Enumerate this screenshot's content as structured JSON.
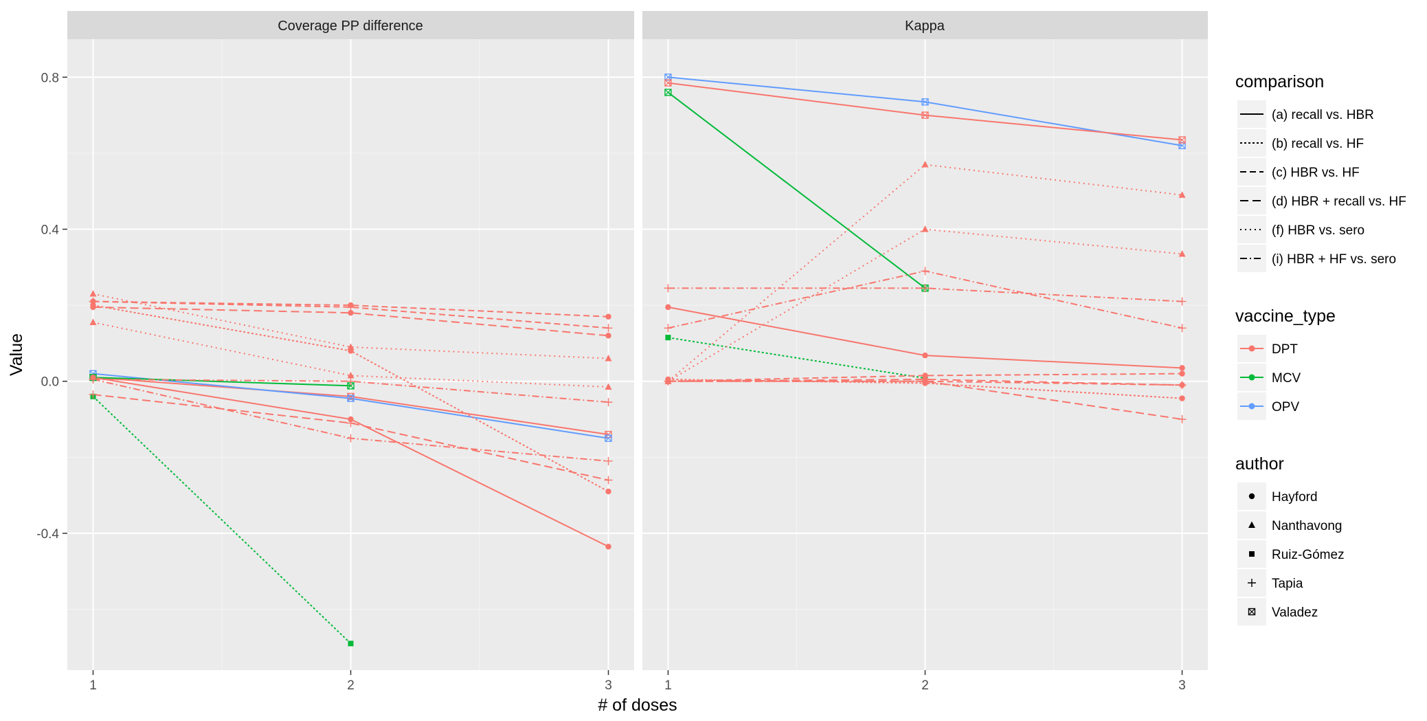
{
  "chart_data": {
    "type": "line",
    "x": [
      1,
      2,
      3
    ],
    "xlabel": "# of doses",
    "ylabel": "Value",
    "ylim": [
      -0.76,
      0.9
    ],
    "yticks": [
      {
        "value": 0.8,
        "label": "0.8"
      },
      {
        "value": 0.4,
        "label": "0.4"
      },
      {
        "value": 0.0,
        "label": "0.0"
      },
      {
        "value": -0.4,
        "label": "-0.4"
      }
    ],
    "xticks": [
      {
        "value": 1,
        "label": "1"
      },
      {
        "value": 2,
        "label": "2"
      },
      {
        "value": 3,
        "label": "3"
      }
    ],
    "colors": {
      "DPT": "#F8766D",
      "MCV": "#00BA38",
      "OPV": "#619CFF"
    },
    "panels": [
      {
        "title": "Coverage PP difference",
        "series": [
          {
            "name": "Valadez DPT recall vs. HBR",
            "comparison": "a",
            "vaccine": "DPT",
            "author": "Valadez",
            "values": [
              0.01,
              -0.04,
              -0.14
            ]
          },
          {
            "name": "Valadez OPV recall vs. HBR",
            "comparison": "a",
            "vaccine": "OPV",
            "author": "Valadez",
            "values": [
              0.02,
              -0.045,
              -0.15
            ]
          },
          {
            "name": "Valadez MCV recall vs. HBR",
            "comparison": "a",
            "vaccine": "MCV",
            "author": "Valadez",
            "values": [
              0.01,
              -0.012,
              null
            ]
          },
          {
            "name": "Hayford DPT recall vs. HBR",
            "comparison": "a",
            "vaccine": "DPT",
            "author": "Hayford",
            "values": [
              0.01,
              -0.1,
              -0.435
            ]
          },
          {
            "name": "Ruiz-Gómez MCV recall vs. HF",
            "comparison": "b",
            "vaccine": "MCV",
            "author": "Ruiz-Gómez",
            "values": [
              -0.04,
              -0.69,
              null
            ]
          },
          {
            "name": "Hayford DPT recall vs. HF",
            "comparison": "b",
            "vaccine": "DPT",
            "author": "Hayford",
            "values": [
              0.2,
              0.08,
              -0.29
            ]
          },
          {
            "name": "Hayford DPT HBR vs. HF",
            "comparison": "c",
            "vaccine": "DPT",
            "author": "Hayford",
            "values": [
              0.21,
              0.2,
              0.17
            ]
          },
          {
            "name": "Tapia DPT HBR vs. HF",
            "comparison": "c",
            "vaccine": "DPT",
            "author": "Tapia",
            "values": [
              0.21,
              0.195,
              0.14
            ]
          },
          {
            "name": "Hayford DPT HBR + recall vs. HF",
            "comparison": "d",
            "vaccine": "DPT",
            "author": "Hayford",
            "values": [
              0.195,
              0.18,
              0.12
            ]
          },
          {
            "name": "Tapia DPT HBR + recall vs. HF",
            "comparison": "d",
            "vaccine": "DPT",
            "author": "Tapia",
            "values": [
              -0.035,
              -0.11,
              -0.26
            ]
          },
          {
            "name": "Nanthavong DPT HBR vs. sero 1",
            "comparison": "f",
            "vaccine": "DPT",
            "author": "Nanthavong",
            "values": [
              0.23,
              0.09,
              0.06
            ]
          },
          {
            "name": "Nanthavong DPT HBR vs. sero 2",
            "comparison": "f",
            "vaccine": "DPT",
            "author": "Nanthavong",
            "values": [
              0.155,
              0.015,
              -0.015
            ]
          },
          {
            "name": "Tapia DPT HBR + HF vs. sero 1",
            "comparison": "i",
            "vaccine": "DPT",
            "author": "Tapia",
            "values": [
              0.005,
              0.0,
              -0.055
            ]
          },
          {
            "name": "Tapia DPT HBR + HF vs. sero 2",
            "comparison": "i",
            "vaccine": "DPT",
            "author": "Tapia",
            "values": [
              0.005,
              -0.15,
              -0.21
            ]
          }
        ]
      },
      {
        "title": "Kappa",
        "series": [
          {
            "name": "Valadez OPV recall vs. HBR",
            "comparison": "a",
            "vaccine": "OPV",
            "author": "Valadez",
            "values": [
              0.8,
              0.735,
              0.62
            ]
          },
          {
            "name": "Valadez DPT recall vs. HBR",
            "comparison": "a",
            "vaccine": "DPT",
            "author": "Valadez",
            "values": [
              0.785,
              0.7,
              0.635
            ]
          },
          {
            "name": "Valadez MCV recall vs. HBR",
            "comparison": "a",
            "vaccine": "MCV",
            "author": "Valadez",
            "values": [
              0.76,
              0.245,
              null
            ]
          },
          {
            "name": "Hayford DPT recall vs. HBR",
            "comparison": "a",
            "vaccine": "DPT",
            "author": "Hayford",
            "values": [
              0.195,
              0.068,
              0.035
            ]
          },
          {
            "name": "Ruiz-Gómez MCV recall vs. HF",
            "comparison": "b",
            "vaccine": "MCV",
            "author": "Ruiz-Gómez",
            "values": [
              0.115,
              0.008,
              null
            ]
          },
          {
            "name": "Hayford DPT recall vs. HF",
            "comparison": "b",
            "vaccine": "DPT",
            "author": "Hayford",
            "values": [
              0.005,
              -0.005,
              -0.045
            ]
          },
          {
            "name": "Hayford DPT HBR vs. HF",
            "comparison": "c",
            "vaccine": "DPT",
            "author": "Hayford",
            "values": [
              0.0,
              0.015,
              0.02
            ]
          },
          {
            "name": "Tapia DPT HBR vs. HF",
            "comparison": "c",
            "vaccine": "DPT",
            "author": "Tapia",
            "values": [
              0.0,
              0.0,
              -0.01
            ]
          },
          {
            "name": "Hayford DPT HBR + recall vs. HF",
            "comparison": "d",
            "vaccine": "DPT",
            "author": "Hayford",
            "values": [
              0.0,
              0.005,
              -0.01
            ]
          },
          {
            "name": "Tapia DPT HBR + recall vs. HF",
            "comparison": "d",
            "vaccine": "DPT",
            "author": "Tapia",
            "values": [
              0.0,
              0.0,
              -0.1
            ]
          },
          {
            "name": "Nanthavong DPT HBR vs. sero 1",
            "comparison": "f",
            "vaccine": "DPT",
            "author": "Nanthavong",
            "values": [
              0.0,
              0.57,
              0.49
            ]
          },
          {
            "name": "Nanthavong DPT HBR vs. sero 2",
            "comparison": "f",
            "vaccine": "DPT",
            "author": "Nanthavong",
            "values": [
              0.0,
              0.4,
              0.335
            ]
          },
          {
            "name": "Tapia DPT HBR + HF vs. sero 1",
            "comparison": "i",
            "vaccine": "DPT",
            "author": "Tapia",
            "values": [
              0.245,
              0.245,
              0.21
            ]
          },
          {
            "name": "Tapia DPT HBR + HF vs. sero 2",
            "comparison": "i",
            "vaccine": "DPT",
            "author": "Tapia",
            "values": [
              0.14,
              0.29,
              0.14
            ]
          }
        ]
      }
    ],
    "legend": {
      "placement": "right",
      "groups": [
        {
          "title": "comparison",
          "kind": "linetype",
          "items": [
            {
              "key": "a",
              "label": "(a) recall vs. HBR"
            },
            {
              "key": "b",
              "label": "(b) recall vs. HF"
            },
            {
              "key": "c",
              "label": "(c) HBR vs. HF"
            },
            {
              "key": "d",
              "label": "(d) HBR + recall vs. HF"
            },
            {
              "key": "f",
              "label": "(f) HBR vs. sero"
            },
            {
              "key": "i",
              "label": "(i) HBR + HF vs. sero"
            }
          ]
        },
        {
          "title": "vaccine_type",
          "kind": "color",
          "items": [
            {
              "key": "DPT",
              "label": "DPT"
            },
            {
              "key": "MCV",
              "label": "MCV"
            },
            {
              "key": "OPV",
              "label": "OPV"
            }
          ]
        },
        {
          "title": "author",
          "kind": "shape",
          "items": [
            {
              "key": "Hayford",
              "label": "Hayford"
            },
            {
              "key": "Nanthavong",
              "label": "Nanthavong"
            },
            {
              "key": "Ruiz-Gómez",
              "label": "Ruiz-Gómez"
            },
            {
              "key": "Tapia",
              "label": "Tapia"
            },
            {
              "key": "Valadez",
              "label": "Valadez"
            }
          ]
        }
      ]
    }
  }
}
